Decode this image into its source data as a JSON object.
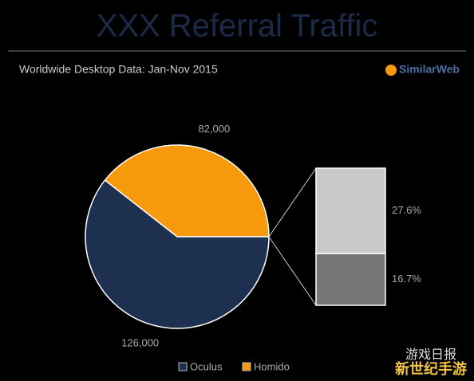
{
  "chart_data": [
    {
      "type": "pie",
      "title": "XXX Referral Traffic",
      "subtitle": "Worldwide Desktop Data: Jan-Nov 2015",
      "categories": [
        "Oculus",
        "Homido"
      ],
      "values": [
        126000,
        82000
      ],
      "value_labels": [
        "126,000",
        "82,000"
      ],
      "colors": [
        "#1d3050",
        "#f7990c"
      ],
      "legend": "bottom"
    },
    {
      "type": "bar",
      "values": [
        27.6,
        16.7
      ],
      "value_labels": [
        "27.6%",
        "16.7%"
      ],
      "colors": [
        "#c9c9c9",
        "#777777"
      ]
    }
  ],
  "source": "SimilarWeb",
  "watermark": [
    "游戏日报",
    "新世纪手游"
  ]
}
